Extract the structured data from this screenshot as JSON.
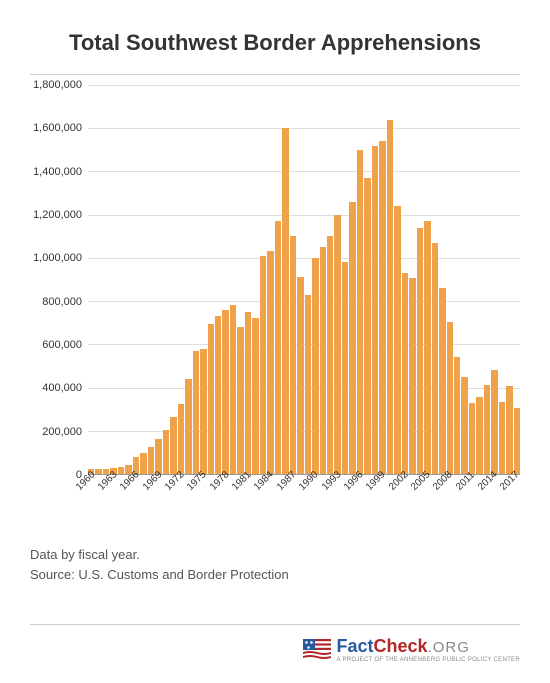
{
  "title": "Total Southwest Border Apprehensions",
  "chart": {
    "type": "bar",
    "bar_color": "#f0a24a",
    "grid_color": "#dddddd",
    "axis_color": "#999999",
    "background_color": "#ffffff",
    "y_axis": {
      "min": 0,
      "max": 1800000,
      "tick_step": 200000,
      "ticks": [
        "0",
        "200,000",
        "400,000",
        "600,000",
        "800,000",
        "1,000,000",
        "1,200,000",
        "1,400,000",
        "1,600,000",
        "1,800,000"
      ]
    },
    "x_axis": {
      "start_year": 1960,
      "end_year": 2017,
      "label_step": 3,
      "labels": [
        "1960",
        "1963",
        "1966",
        "1969",
        "1972",
        "1975",
        "1978",
        "1981",
        "1984",
        "1987",
        "1990",
        "1993",
        "1996",
        "1999",
        "2002",
        "2005",
        "2008",
        "2011",
        "2014",
        "2017"
      ]
    },
    "data": [
      {
        "year": 1960,
        "value": 22000
      },
      {
        "year": 1961,
        "value": 22000
      },
      {
        "year": 1962,
        "value": 23000
      },
      {
        "year": 1963,
        "value": 30000
      },
      {
        "year": 1964,
        "value": 34000
      },
      {
        "year": 1965,
        "value": 40000
      },
      {
        "year": 1966,
        "value": 80000
      },
      {
        "year": 1967,
        "value": 95000
      },
      {
        "year": 1968,
        "value": 125000
      },
      {
        "year": 1969,
        "value": 160000
      },
      {
        "year": 1970,
        "value": 202000
      },
      {
        "year": 1971,
        "value": 264000
      },
      {
        "year": 1972,
        "value": 322000
      },
      {
        "year": 1973,
        "value": 441000
      },
      {
        "year": 1974,
        "value": 571000
      },
      {
        "year": 1975,
        "value": 580000
      },
      {
        "year": 1976,
        "value": 693000
      },
      {
        "year": 1977,
        "value": 733000
      },
      {
        "year": 1978,
        "value": 760000
      },
      {
        "year": 1979,
        "value": 780000
      },
      {
        "year": 1980,
        "value": 680000
      },
      {
        "year": 1981,
        "value": 750000
      },
      {
        "year": 1982,
        "value": 720000
      },
      {
        "year": 1983,
        "value": 1010000
      },
      {
        "year": 1984,
        "value": 1030000
      },
      {
        "year": 1985,
        "value": 1170000
      },
      {
        "year": 1986,
        "value": 1600000
      },
      {
        "year": 1987,
        "value": 1100000
      },
      {
        "year": 1988,
        "value": 910000
      },
      {
        "year": 1989,
        "value": 830000
      },
      {
        "year": 1990,
        "value": 1000000
      },
      {
        "year": 1991,
        "value": 1050000
      },
      {
        "year": 1992,
        "value": 1100000
      },
      {
        "year": 1993,
        "value": 1200000
      },
      {
        "year": 1994,
        "value": 980000
      },
      {
        "year": 1995,
        "value": 1260000
      },
      {
        "year": 1996,
        "value": 1500000
      },
      {
        "year": 1997,
        "value": 1370000
      },
      {
        "year": 1998,
        "value": 1520000
      },
      {
        "year": 1999,
        "value": 1540000
      },
      {
        "year": 2000,
        "value": 1640000
      },
      {
        "year": 2001,
        "value": 1240000
      },
      {
        "year": 2002,
        "value": 930000
      },
      {
        "year": 2003,
        "value": 905000
      },
      {
        "year": 2004,
        "value": 1140000
      },
      {
        "year": 2005,
        "value": 1170000
      },
      {
        "year": 2006,
        "value": 1070000
      },
      {
        "year": 2007,
        "value": 860000
      },
      {
        "year": 2008,
        "value": 705000
      },
      {
        "year": 2009,
        "value": 540000
      },
      {
        "year": 2010,
        "value": 448000
      },
      {
        "year": 2011,
        "value": 328000
      },
      {
        "year": 2012,
        "value": 357000
      },
      {
        "year": 2013,
        "value": 414000
      },
      {
        "year": 2014,
        "value": 480000
      },
      {
        "year": 2015,
        "value": 331000
      },
      {
        "year": 2016,
        "value": 409000
      },
      {
        "year": 2017,
        "value": 304000
      }
    ]
  },
  "notes": {
    "line1": "Data by fiscal year.",
    "line2": "Source: U.S. Customs and Border Protection"
  },
  "logo": {
    "fact": "Fact",
    "check": "Check",
    "org": ".ORG",
    "sub": "A PROJECT OF THE ANNENBERG PUBLIC POLICY CENTER"
  }
}
